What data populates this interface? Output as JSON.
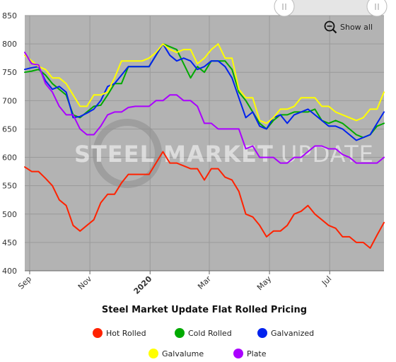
{
  "chart_data": {
    "type": "line",
    "title": "Steel Market Update Flat Rolled Pricing",
    "watermark": {
      "bold": "STEEL MARKET",
      "light": "UPDATE"
    },
    "zoom_button": {
      "label": "Show all"
    },
    "ylim": [
      400,
      850
    ],
    "yticks": [
      400,
      450,
      500,
      550,
      600,
      650,
      700,
      750,
      800,
      850
    ],
    "x_start": "2019-08-27",
    "x_end": "2020-08-25",
    "x_ticks": [
      {
        "date": "2019-09-01",
        "label": "Sep",
        "bold": false
      },
      {
        "date": "2019-11-01",
        "label": "Nov",
        "bold": false
      },
      {
        "date": "2020-01-01",
        "label": "2020",
        "bold": true
      },
      {
        "date": "2020-03-01",
        "label": "Mar",
        "bold": false
      },
      {
        "date": "2020-05-01",
        "label": "May",
        "bold": false
      },
      {
        "date": "2020-07-01",
        "label": "Jul",
        "bold": false
      }
    ],
    "grid": true,
    "legend_position": "bottom",
    "series": [
      {
        "name": "Hot Rolled",
        "color": "#ff2200",
        "values": [
          [
            "2019-08-27",
            583
          ],
          [
            "2019-09-03",
            575
          ],
          [
            "2019-09-10",
            575
          ],
          [
            "2019-09-17",
            563
          ],
          [
            "2019-09-24",
            550
          ],
          [
            "2019-10-01",
            525
          ],
          [
            "2019-10-08",
            515
          ],
          [
            "2019-10-15",
            480
          ],
          [
            "2019-10-22",
            470
          ],
          [
            "2019-10-29",
            480
          ],
          [
            "2019-11-05",
            490
          ],
          [
            "2019-11-12",
            520
          ],
          [
            "2019-11-19",
            535
          ],
          [
            "2019-11-26",
            535
          ],
          [
            "2019-12-03",
            555
          ],
          [
            "2019-12-10",
            570
          ],
          [
            "2019-12-17",
            570
          ],
          [
            "2019-12-24",
            570
          ],
          [
            "2019-12-31",
            570
          ],
          [
            "2020-01-07",
            590
          ],
          [
            "2020-01-14",
            610
          ],
          [
            "2020-01-21",
            590
          ],
          [
            "2020-01-28",
            590
          ],
          [
            "2020-02-04",
            585
          ],
          [
            "2020-02-11",
            580
          ],
          [
            "2020-02-18",
            580
          ],
          [
            "2020-02-25",
            560
          ],
          [
            "2020-03-03",
            580
          ],
          [
            "2020-03-10",
            580
          ],
          [
            "2020-03-17",
            565
          ],
          [
            "2020-03-24",
            560
          ],
          [
            "2020-03-31",
            540
          ],
          [
            "2020-04-07",
            500
          ],
          [
            "2020-04-14",
            495
          ],
          [
            "2020-04-21",
            480
          ],
          [
            "2020-04-28",
            460
          ],
          [
            "2020-05-05",
            470
          ],
          [
            "2020-05-12",
            470
          ],
          [
            "2020-05-19",
            480
          ],
          [
            "2020-05-26",
            500
          ],
          [
            "2020-06-02",
            505
          ],
          [
            "2020-06-09",
            515
          ],
          [
            "2020-06-16",
            500
          ],
          [
            "2020-06-23",
            490
          ],
          [
            "2020-06-30",
            480
          ],
          [
            "2020-07-07",
            475
          ],
          [
            "2020-07-14",
            460
          ],
          [
            "2020-07-21",
            460
          ],
          [
            "2020-07-28",
            450
          ],
          [
            "2020-08-04",
            450
          ],
          [
            "2020-08-11",
            440
          ],
          [
            "2020-08-18",
            463
          ],
          [
            "2020-08-25",
            485
          ]
        ]
      },
      {
        "name": "Cold Rolled",
        "color": "#00aa00",
        "values": [
          [
            "2019-08-27",
            750
          ],
          [
            "2019-09-03",
            752
          ],
          [
            "2019-09-10",
            755
          ],
          [
            "2019-09-17",
            745
          ],
          [
            "2019-09-24",
            730
          ],
          [
            "2019-10-01",
            720
          ],
          [
            "2019-10-08",
            710
          ],
          [
            "2019-10-15",
            675
          ],
          [
            "2019-10-22",
            670
          ],
          [
            "2019-10-29",
            680
          ],
          [
            "2019-11-05",
            690
          ],
          [
            "2019-11-12",
            692
          ],
          [
            "2019-11-19",
            710
          ],
          [
            "2019-11-26",
            730
          ],
          [
            "2019-12-03",
            730
          ],
          [
            "2019-12-10",
            760
          ],
          [
            "2019-12-17",
            760
          ],
          [
            "2019-12-24",
            760
          ],
          [
            "2019-12-31",
            760
          ],
          [
            "2020-01-07",
            780
          ],
          [
            "2020-01-14",
            800
          ],
          [
            "2020-01-21",
            795
          ],
          [
            "2020-01-28",
            790
          ],
          [
            "2020-02-04",
            765
          ],
          [
            "2020-02-11",
            740
          ],
          [
            "2020-02-18",
            760
          ],
          [
            "2020-02-25",
            750
          ],
          [
            "2020-03-03",
            770
          ],
          [
            "2020-03-10",
            770
          ],
          [
            "2020-03-17",
            770
          ],
          [
            "2020-03-24",
            755
          ],
          [
            "2020-03-31",
            715
          ],
          [
            "2020-04-07",
            700
          ],
          [
            "2020-04-14",
            680
          ],
          [
            "2020-04-21",
            660
          ],
          [
            "2020-04-28",
            650
          ],
          [
            "2020-05-05",
            665
          ],
          [
            "2020-05-12",
            675
          ],
          [
            "2020-05-19",
            675
          ],
          [
            "2020-05-26",
            680
          ],
          [
            "2020-06-02",
            680
          ],
          [
            "2020-06-09",
            680
          ],
          [
            "2020-06-16",
            685
          ],
          [
            "2020-06-23",
            665
          ],
          [
            "2020-06-30",
            660
          ],
          [
            "2020-07-07",
            665
          ],
          [
            "2020-07-14",
            660
          ],
          [
            "2020-07-21",
            650
          ],
          [
            "2020-07-28",
            640
          ],
          [
            "2020-08-04",
            635
          ],
          [
            "2020-08-11",
            640
          ],
          [
            "2020-08-18",
            655
          ],
          [
            "2020-08-25",
            660
          ]
        ]
      },
      {
        "name": "Galvanized",
        "color": "#0022ee",
        "values": [
          [
            "2019-08-27",
            755
          ],
          [
            "2019-09-03",
            758
          ],
          [
            "2019-09-10",
            760
          ],
          [
            "2019-09-17",
            735
          ],
          [
            "2019-09-24",
            720
          ],
          [
            "2019-10-01",
            725
          ],
          [
            "2019-10-08",
            715
          ],
          [
            "2019-10-15",
            670
          ],
          [
            "2019-10-22",
            672
          ],
          [
            "2019-10-29",
            678
          ],
          [
            "2019-11-05",
            685
          ],
          [
            "2019-11-12",
            700
          ],
          [
            "2019-11-19",
            725
          ],
          [
            "2019-11-26",
            730
          ],
          [
            "2019-12-03",
            745
          ],
          [
            "2019-12-10",
            760
          ],
          [
            "2019-12-17",
            760
          ],
          [
            "2019-12-24",
            760
          ],
          [
            "2019-12-31",
            760
          ],
          [
            "2020-01-07",
            780
          ],
          [
            "2020-01-14",
            800
          ],
          [
            "2020-01-21",
            780
          ],
          [
            "2020-01-28",
            770
          ],
          [
            "2020-02-04",
            775
          ],
          [
            "2020-02-11",
            770
          ],
          [
            "2020-02-18",
            755
          ],
          [
            "2020-02-25",
            760
          ],
          [
            "2020-03-03",
            770
          ],
          [
            "2020-03-10",
            770
          ],
          [
            "2020-03-17",
            760
          ],
          [
            "2020-03-24",
            740
          ],
          [
            "2020-03-31",
            705
          ],
          [
            "2020-04-07",
            670
          ],
          [
            "2020-04-14",
            680
          ],
          [
            "2020-04-21",
            655
          ],
          [
            "2020-04-28",
            650
          ],
          [
            "2020-05-05",
            670
          ],
          [
            "2020-05-12",
            675
          ],
          [
            "2020-05-19",
            660
          ],
          [
            "2020-05-26",
            675
          ],
          [
            "2020-06-02",
            680
          ],
          [
            "2020-06-09",
            685
          ],
          [
            "2020-06-16",
            675
          ],
          [
            "2020-06-23",
            665
          ],
          [
            "2020-06-30",
            655
          ],
          [
            "2020-07-07",
            655
          ],
          [
            "2020-07-14",
            650
          ],
          [
            "2020-07-21",
            640
          ],
          [
            "2020-07-28",
            630
          ],
          [
            "2020-08-04",
            635
          ],
          [
            "2020-08-11",
            640
          ],
          [
            "2020-08-18",
            660
          ],
          [
            "2020-08-25",
            680
          ]
        ]
      },
      {
        "name": "Galvalume",
        "color": "#ffff00",
        "values": [
          [
            "2019-08-27",
            780
          ],
          [
            "2019-09-03",
            770
          ],
          [
            "2019-09-10",
            760
          ],
          [
            "2019-09-17",
            755
          ],
          [
            "2019-09-24",
            740
          ],
          [
            "2019-10-01",
            740
          ],
          [
            "2019-10-08",
            730
          ],
          [
            "2019-10-15",
            710
          ],
          [
            "2019-10-22",
            690
          ],
          [
            "2019-10-29",
            690
          ],
          [
            "2019-11-05",
            710
          ],
          [
            "2019-11-12",
            710
          ],
          [
            "2019-11-19",
            715
          ],
          [
            "2019-11-26",
            740
          ],
          [
            "2019-12-03",
            770
          ],
          [
            "2019-12-10",
            770
          ],
          [
            "2019-12-17",
            770
          ],
          [
            "2019-12-24",
            770
          ],
          [
            "2019-12-31",
            775
          ],
          [
            "2020-01-07",
            785
          ],
          [
            "2020-01-14",
            800
          ],
          [
            "2020-01-21",
            790
          ],
          [
            "2020-01-28",
            785
          ],
          [
            "2020-02-04",
            790
          ],
          [
            "2020-02-11",
            790
          ],
          [
            "2020-02-18",
            765
          ],
          [
            "2020-02-25",
            775
          ],
          [
            "2020-03-03",
            790
          ],
          [
            "2020-03-10",
            800
          ],
          [
            "2020-03-17",
            775
          ],
          [
            "2020-03-24",
            775
          ],
          [
            "2020-03-31",
            720
          ],
          [
            "2020-04-07",
            705
          ],
          [
            "2020-04-14",
            705
          ],
          [
            "2020-04-21",
            665
          ],
          [
            "2020-04-28",
            660
          ],
          [
            "2020-05-05",
            670
          ],
          [
            "2020-05-12",
            685
          ],
          [
            "2020-05-19",
            685
          ],
          [
            "2020-05-26",
            690
          ],
          [
            "2020-06-02",
            705
          ],
          [
            "2020-06-09",
            705
          ],
          [
            "2020-06-16",
            705
          ],
          [
            "2020-06-23",
            690
          ],
          [
            "2020-06-30",
            690
          ],
          [
            "2020-07-07",
            680
          ],
          [
            "2020-07-14",
            675
          ],
          [
            "2020-07-21",
            670
          ],
          [
            "2020-07-28",
            665
          ],
          [
            "2020-08-04",
            670
          ],
          [
            "2020-08-11",
            685
          ],
          [
            "2020-08-18",
            685
          ],
          [
            "2020-08-25",
            715
          ]
        ]
      },
      {
        "name": "Plate",
        "color": "#aa00ff",
        "values": [
          [
            "2019-08-27",
            785
          ],
          [
            "2019-09-03",
            765
          ],
          [
            "2019-09-10",
            763
          ],
          [
            "2019-09-17",
            730
          ],
          [
            "2019-09-24",
            715
          ],
          [
            "2019-10-01",
            690
          ],
          [
            "2019-10-08",
            675
          ],
          [
            "2019-10-15",
            675
          ],
          [
            "2019-10-22",
            650
          ],
          [
            "2019-10-29",
            640
          ],
          [
            "2019-11-05",
            640
          ],
          [
            "2019-11-12",
            655
          ],
          [
            "2019-11-19",
            675
          ],
          [
            "2019-11-26",
            680
          ],
          [
            "2019-12-03",
            680
          ],
          [
            "2019-12-10",
            688
          ],
          [
            "2019-12-17",
            690
          ],
          [
            "2019-12-24",
            690
          ],
          [
            "2019-12-31",
            690
          ],
          [
            "2020-01-07",
            700
          ],
          [
            "2020-01-14",
            700
          ],
          [
            "2020-01-21",
            710
          ],
          [
            "2020-01-28",
            710
          ],
          [
            "2020-02-04",
            700
          ],
          [
            "2020-02-11",
            700
          ],
          [
            "2020-02-18",
            690
          ],
          [
            "2020-02-25",
            660
          ],
          [
            "2020-03-03",
            660
          ],
          [
            "2020-03-10",
            650
          ],
          [
            "2020-03-17",
            650
          ],
          [
            "2020-03-24",
            650
          ],
          [
            "2020-03-31",
            650
          ],
          [
            "2020-04-07",
            615
          ],
          [
            "2020-04-14",
            620
          ],
          [
            "2020-04-21",
            600
          ],
          [
            "2020-04-28",
            600
          ],
          [
            "2020-05-05",
            600
          ],
          [
            "2020-05-12",
            590
          ],
          [
            "2020-05-19",
            590
          ],
          [
            "2020-05-26",
            600
          ],
          [
            "2020-06-02",
            600
          ],
          [
            "2020-06-09",
            610
          ],
          [
            "2020-06-16",
            620
          ],
          [
            "2020-06-23",
            620
          ],
          [
            "2020-06-30",
            615
          ],
          [
            "2020-07-07",
            615
          ],
          [
            "2020-07-14",
            605
          ],
          [
            "2020-07-21",
            600
          ],
          [
            "2020-07-28",
            590
          ],
          [
            "2020-08-04",
            590
          ],
          [
            "2020-08-11",
            590
          ],
          [
            "2020-08-18",
            590
          ],
          [
            "2020-08-25",
            600
          ]
        ]
      }
    ]
  }
}
